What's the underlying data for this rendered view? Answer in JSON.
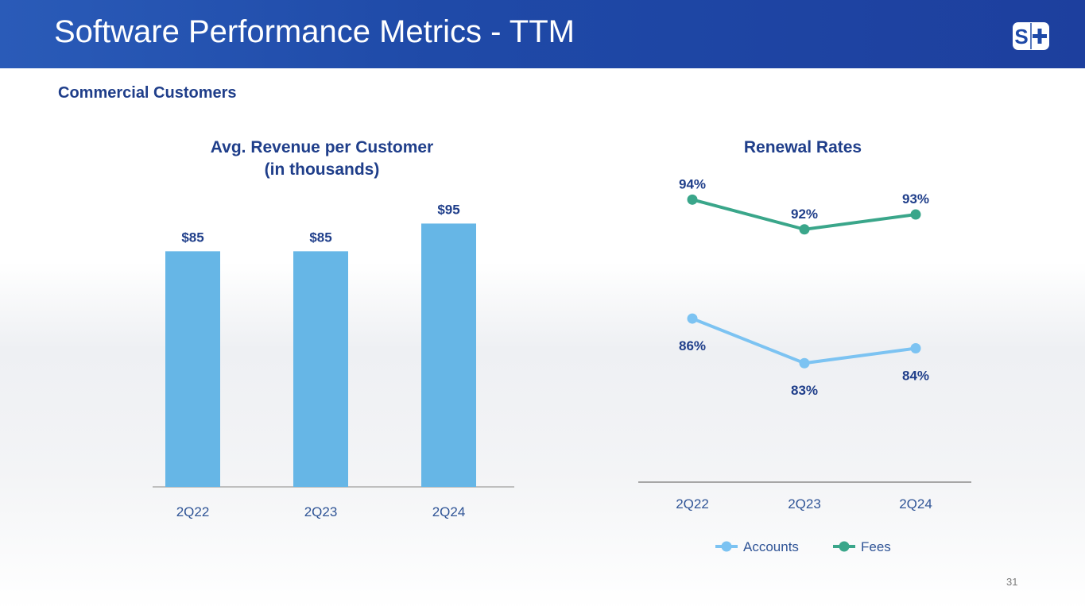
{
  "header": {
    "title": "Software Performance Metrics - TTM",
    "logo_text": "S+"
  },
  "subtitle": "Commercial Customers",
  "page_number": "31",
  "colors": {
    "bar": "#66b6e6",
    "accounts": "#7cc3f2",
    "fees": "#3aa68a",
    "text": "#1f3e8a"
  },
  "chart_data": [
    {
      "type": "bar",
      "title_line1": "Avg. Revenue per Customer",
      "title_line2": "(in thousands)",
      "categories": [
        "2Q22",
        "2Q23",
        "2Q24"
      ],
      "values": [
        85,
        85,
        95
      ],
      "labels": [
        "$85",
        "$85",
        "$95"
      ],
      "ylim": [
        0,
        100
      ]
    },
    {
      "type": "line",
      "title": "Renewal Rates",
      "categories": [
        "2Q22",
        "2Q23",
        "2Q24"
      ],
      "ylim": [
        75,
        100
      ],
      "series": [
        {
          "name": "Accounts",
          "values": [
            86,
            83,
            84
          ],
          "labels": [
            "86%",
            "83%",
            "84%"
          ]
        },
        {
          "name": "Fees",
          "values": [
            94,
            92,
            93
          ],
          "labels": [
            "94%",
            "92%",
            "93%"
          ]
        }
      ],
      "legend": "bottom"
    }
  ]
}
